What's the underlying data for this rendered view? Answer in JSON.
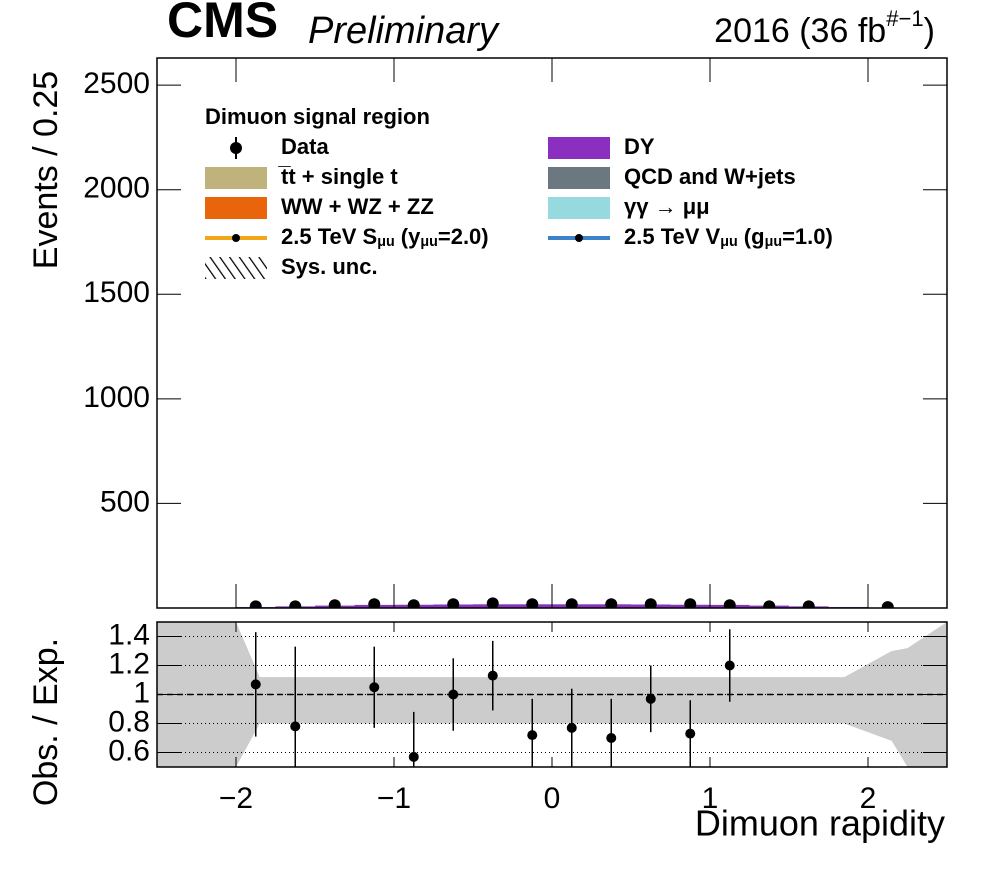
{
  "chart_data": [
    {
      "type": "stacked-histogram",
      "title": "CMS",
      "subtitle": "Preliminary",
      "lumi_label": [
        "2016 (36 fb",
        "#−1",
        ")"
      ],
      "y_label": "Events / 0.25",
      "legend_header": "Dimuon signal region",
      "xlim": [
        -2.5,
        2.5
      ],
      "xticks": [
        -2,
        -1,
        0,
        1,
        2
      ],
      "ylim": [
        0,
        2630
      ],
      "yticks": [
        500,
        1000,
        1500,
        2000,
        2500
      ],
      "bins": [
        -2,
        -1.75,
        -1.5,
        -1.25,
        -1,
        -0.75,
        -0.5,
        -0.25,
        0,
        0.25,
        0.5,
        0.75,
        1,
        1.25,
        1.5,
        1.75,
        2
      ],
      "series": [
        {
          "name": "t̅t + single t",
          "color": "#bfb27a",
          "values": [
            1,
            1,
            2,
            2,
            2,
            2,
            2,
            2,
            2,
            2,
            2,
            2,
            2,
            2,
            1,
            1
          ]
        },
        {
          "name": "WW + WZ + ZZ",
          "color": "#e8650b",
          "values": [
            0.5,
            0.5,
            0.5,
            0.5,
            0.5,
            0.5,
            0.5,
            0.5,
            0.5,
            0.5,
            0.5,
            0.5,
            0.5,
            0.5,
            0.5,
            0.5
          ]
        },
        {
          "name": "DY",
          "color": "#8a2fbf",
          "values": [
            3,
            6,
            9,
            12,
            13,
            14,
            15,
            15,
            15,
            15,
            14,
            13,
            12,
            9,
            6,
            3
          ]
        },
        {
          "name": "QCD and W+jets",
          "color": "#6c7880",
          "values": [
            0.3,
            0.3,
            0.3,
            0.3,
            0.3,
            0.3,
            0.3,
            0.3,
            0.3,
            0.3,
            0.3,
            0.3,
            0.3,
            0.3,
            0.3,
            0.3
          ]
        },
        {
          "name": "γγ → μμ",
          "color": "#96dadf",
          "values": [
            0.5,
            0.5,
            0.5,
            0.5,
            0.5,
            0.5,
            0.5,
            0.5,
            0.5,
            0.5,
            0.5,
            0.5,
            0.5,
            0.5,
            0.5,
            0.5
          ]
        }
      ],
      "data": {
        "name": "Data",
        "color": "#000000",
        "x": [
          -1.875,
          -1.625,
          -1.375,
          -1.125,
          -0.875,
          -0.625,
          -0.375,
          -0.125,
          0.125,
          0.375,
          0.625,
          0.875,
          1.125,
          1.375,
          1.625,
          2.125
        ],
        "values": [
          8,
          8,
          13,
          18,
          13,
          18,
          22,
          18,
          18,
          18,
          18,
          18,
          13,
          8,
          8,
          4
        ]
      },
      "signals": [
        {
          "name": [
            "2.5 TeV S",
            "μu",
            " (y",
            "μu",
            "=2.0)"
          ],
          "color": "#f2a71b"
        },
        {
          "name": [
            "2.5 TeV V",
            "μu",
            " (g",
            "μu",
            "=1.0)"
          ],
          "color": "#3b82c8"
        }
      ],
      "sys_label": "Sys. unc."
    },
    {
      "type": "ratio",
      "y_label": "Obs. / Exp.",
      "x_label": "Dimuon rapidity",
      "xlim": [
        -2.5,
        2.5
      ],
      "xticks": [
        {
          "value": -2,
          "label": "−2"
        },
        {
          "value": -1,
          "label": "−1"
        },
        0,
        1,
        2
      ],
      "ylim": [
        0.5,
        1.5
      ],
      "yticks": [
        0.6,
        0.8,
        1,
        1.2,
        1.4
      ],
      "grid": true,
      "reference_line": 1,
      "x": [
        -1.875,
        -1.625,
        -1.375,
        -1.125,
        -0.875,
        -0.625,
        -0.375,
        -0.125,
        0.125,
        0.375,
        0.625,
        0.875,
        1.125,
        1.375,
        1.625,
        2.125
      ],
      "values": [
        1.07,
        0.78,
        null,
        1.05,
        0.57,
        1.0,
        1.13,
        0.72,
        0.77,
        0.7,
        0.97,
        0.73,
        1.2,
        null,
        null,
        null
      ],
      "errors": [
        0.36,
        0.55,
        null,
        0.28,
        0.31,
        0.25,
        0.24,
        0.25,
        0.27,
        0.27,
        0.23,
        0.23,
        0.25,
        null,
        null,
        null
      ],
      "sys_band": {
        "color": "#cccccc",
        "x": [
          -2.5,
          -2.25,
          -2,
          -1.85,
          1.85,
          2.15,
          2.25,
          2.5
        ],
        "low": [
          0.5,
          0.5,
          0.5,
          0.8,
          0.8,
          0.68,
          0.5,
          0.5
        ],
        "high": [
          1.5,
          1.5,
          1.5,
          1.12,
          1.12,
          1.3,
          1.32,
          1.5
        ]
      }
    }
  ]
}
